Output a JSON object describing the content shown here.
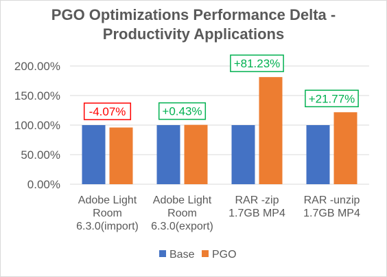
{
  "chart_data": {
    "type": "bar",
    "title_lines": [
      "PGO Optimizations Performance Delta -",
      "Productivity Applications"
    ],
    "categories": [
      [
        "Adobe Light",
        "Room",
        "6.3.0(import)"
      ],
      [
        "Adobe Light",
        "Room",
        "6.3.0(export)"
      ],
      [
        "RAR -zip",
        "1.7GB MP4"
      ],
      [
        "RAR -unzip",
        "1.7GB MP4"
      ]
    ],
    "series": [
      {
        "name": "Base",
        "color": "#4472c4",
        "values": [
          100,
          100,
          100,
          100
        ]
      },
      {
        "name": "PGO",
        "color": "#ed7d31",
        "values": [
          95.93,
          100.43,
          181.23,
          121.77
        ]
      }
    ],
    "data_labels": [
      {
        "text": "-4.07%",
        "color": "#ff0000"
      },
      {
        "text": "+0.43%",
        "color": "#00b050"
      },
      {
        "text": "+81.23%",
        "color": "#00b050"
      },
      {
        "text": "+21.77%",
        "color": "#00b050"
      }
    ],
    "ylim": [
      0,
      200
    ],
    "yticks": [
      "0.00%",
      "50.00%",
      "100.00%",
      "150.00%",
      "200.00%"
    ],
    "ytick_values": [
      0,
      50,
      100,
      150,
      200
    ],
    "grid": true,
    "legend_position": "bottom"
  }
}
